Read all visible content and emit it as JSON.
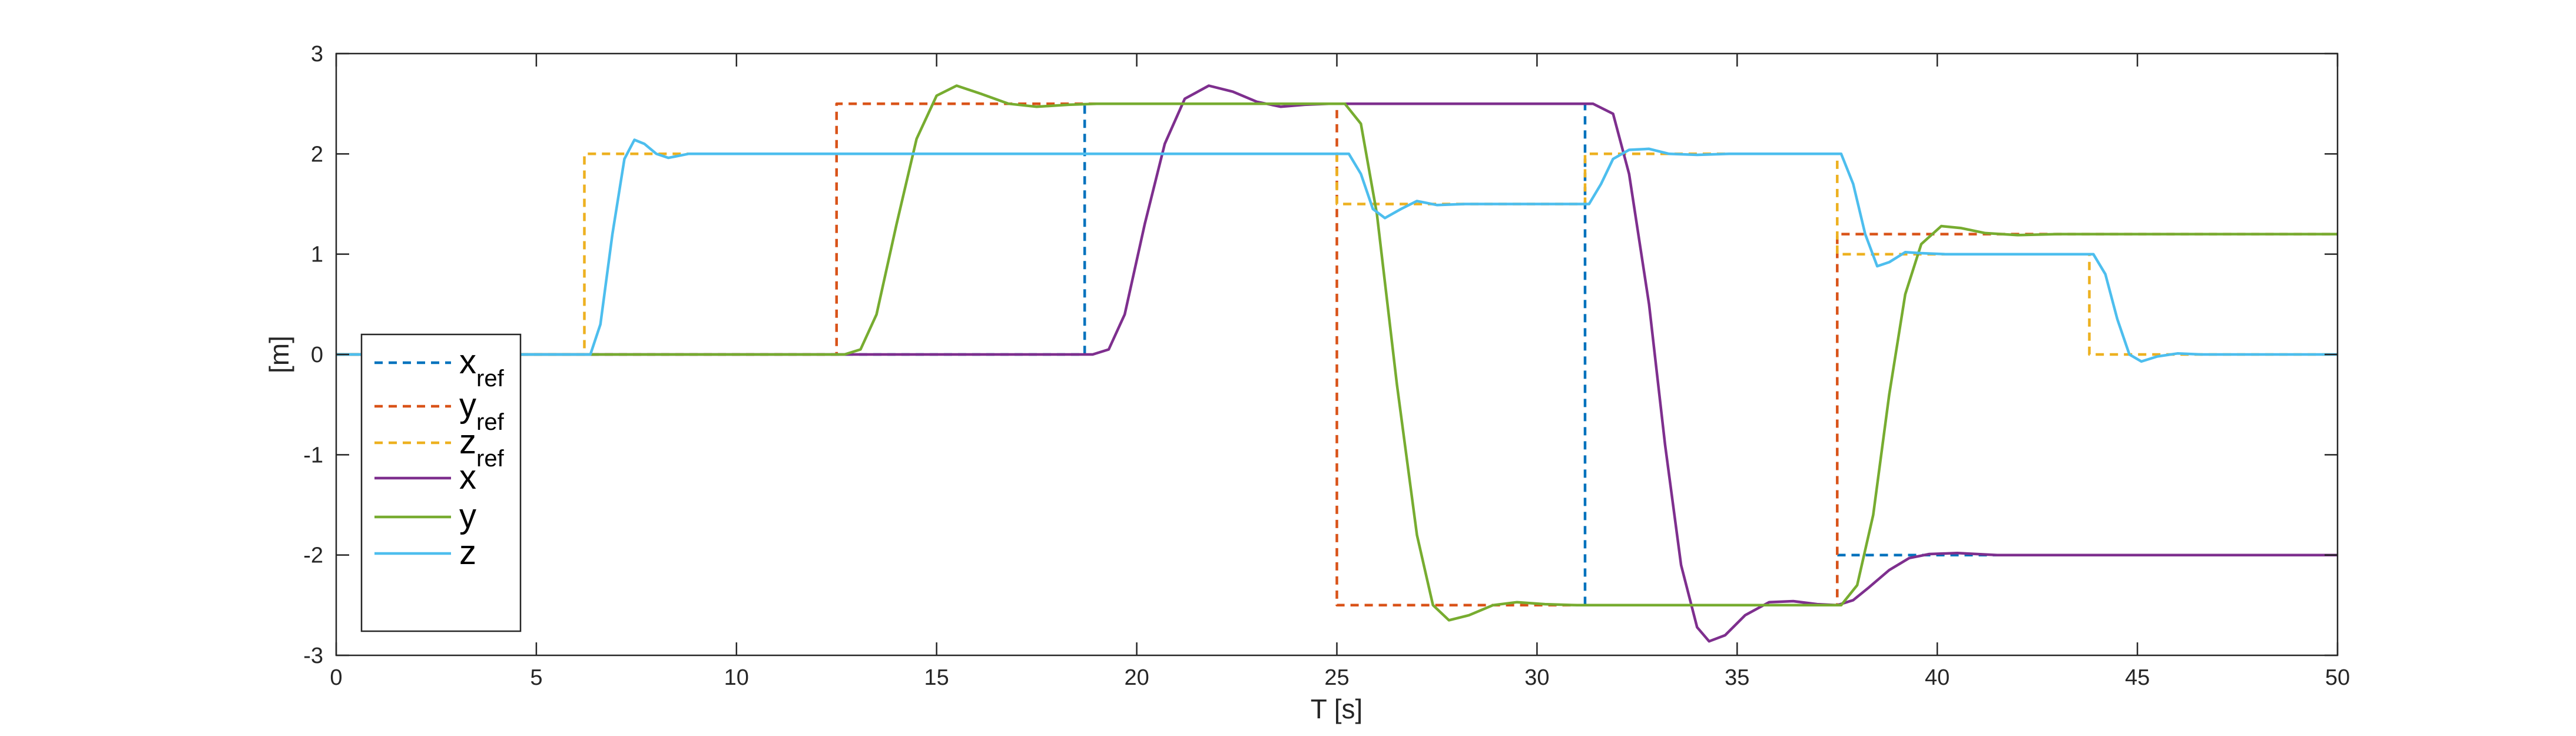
{
  "chart_data": {
    "type": "line",
    "title": "",
    "xlabel": "T [s]",
    "ylabel": "[m]",
    "xlim": [
      0,
      50
    ],
    "ylim": [
      -3,
      3
    ],
    "xticks": [
      0,
      5,
      10,
      15,
      20,
      25,
      30,
      35,
      40,
      45,
      50
    ],
    "yticks": [
      -3,
      -2,
      -1,
      0,
      1,
      2,
      3
    ],
    "legend_position": "bottom-left",
    "series": [
      {
        "name": "x_ref",
        "legend_main": "x",
        "legend_sub": "ref",
        "color": "#0072BD",
        "style": "dashed",
        "points": [
          [
            0,
            0
          ],
          [
            18.7,
            0
          ],
          [
            18.7,
            2.5
          ],
          [
            31.2,
            2.5
          ],
          [
            31.2,
            -2.5
          ],
          [
            37.5,
            -2.5
          ],
          [
            37.5,
            -2
          ],
          [
            50,
            -2
          ]
        ]
      },
      {
        "name": "y_ref",
        "legend_main": "y",
        "legend_sub": "ref",
        "color": "#D95319",
        "style": "dashed",
        "points": [
          [
            0,
            0
          ],
          [
            12.5,
            0
          ],
          [
            12.5,
            2.5
          ],
          [
            25,
            2.5
          ],
          [
            25,
            -2.5
          ],
          [
            37.5,
            -2.5
          ],
          [
            37.5,
            1.2
          ],
          [
            50,
            1.2
          ]
        ]
      },
      {
        "name": "z_ref",
        "legend_main": "z",
        "legend_sub": "ref",
        "color": "#EDB120",
        "style": "dashed",
        "points": [
          [
            0,
            0
          ],
          [
            6.2,
            0
          ],
          [
            6.2,
            2
          ],
          [
            25,
            2
          ],
          [
            25,
            1.5
          ],
          [
            31.2,
            1.5
          ],
          [
            31.2,
            2
          ],
          [
            37.5,
            2
          ],
          [
            37.5,
            1
          ],
          [
            43.8,
            1
          ],
          [
            43.8,
            0
          ],
          [
            50,
            0
          ]
        ]
      },
      {
        "name": "x",
        "legend_main": "x",
        "legend_sub": "",
        "color": "#7E2F8E",
        "style": "solid",
        "points": [
          [
            0,
            0
          ],
          [
            18.9,
            0
          ],
          [
            19.3,
            0.05
          ],
          [
            19.7,
            0.4
          ],
          [
            20.2,
            1.3
          ],
          [
            20.7,
            2.1
          ],
          [
            21.2,
            2.55
          ],
          [
            21.8,
            2.68
          ],
          [
            22.4,
            2.62
          ],
          [
            23.0,
            2.52
          ],
          [
            23.6,
            2.47
          ],
          [
            24.2,
            2.49
          ],
          [
            24.8,
            2.5
          ],
          [
            31.4,
            2.5
          ],
          [
            31.9,
            2.4
          ],
          [
            32.3,
            1.8
          ],
          [
            32.8,
            0.5
          ],
          [
            33.2,
            -0.9
          ],
          [
            33.6,
            -2.1
          ],
          [
            34.0,
            -2.72
          ],
          [
            34.3,
            -2.86
          ],
          [
            34.7,
            -2.8
          ],
          [
            35.2,
            -2.6
          ],
          [
            35.8,
            -2.47
          ],
          [
            36.4,
            -2.46
          ],
          [
            37.0,
            -2.49
          ],
          [
            37.5,
            -2.5
          ],
          [
            37.9,
            -2.45
          ],
          [
            38.3,
            -2.32
          ],
          [
            38.8,
            -2.15
          ],
          [
            39.3,
            -2.03
          ],
          [
            39.8,
            -1.99
          ],
          [
            40.5,
            -1.98
          ],
          [
            41.5,
            -2.0
          ],
          [
            50,
            -2
          ]
        ]
      },
      {
        "name": "y",
        "legend_main": "y",
        "legend_sub": "",
        "color": "#77AC30",
        "style": "solid",
        "points": [
          [
            0,
            0
          ],
          [
            12.7,
            0
          ],
          [
            13.1,
            0.05
          ],
          [
            13.5,
            0.4
          ],
          [
            14.0,
            1.3
          ],
          [
            14.5,
            2.15
          ],
          [
            15.0,
            2.58
          ],
          [
            15.5,
            2.68
          ],
          [
            16.1,
            2.6
          ],
          [
            16.8,
            2.5
          ],
          [
            17.5,
            2.47
          ],
          [
            18.3,
            2.49
          ],
          [
            19.0,
            2.5
          ],
          [
            25.2,
            2.5
          ],
          [
            25.6,
            2.3
          ],
          [
            26.0,
            1.4
          ],
          [
            26.5,
            -0.3
          ],
          [
            27.0,
            -1.8
          ],
          [
            27.4,
            -2.5
          ],
          [
            27.8,
            -2.65
          ],
          [
            28.3,
            -2.6
          ],
          [
            28.9,
            -2.5
          ],
          [
            29.5,
            -2.47
          ],
          [
            30.2,
            -2.49
          ],
          [
            31.0,
            -2.5
          ],
          [
            37.6,
            -2.5
          ],
          [
            38.0,
            -2.3
          ],
          [
            38.4,
            -1.6
          ],
          [
            38.8,
            -0.4
          ],
          [
            39.2,
            0.6
          ],
          [
            39.6,
            1.1
          ],
          [
            40.1,
            1.28
          ],
          [
            40.6,
            1.26
          ],
          [
            41.2,
            1.21
          ],
          [
            42.0,
            1.19
          ],
          [
            43.0,
            1.2
          ],
          [
            50,
            1.2
          ]
        ]
      },
      {
        "name": "z",
        "legend_main": "z",
        "legend_sub": "",
        "color": "#4DBEEE",
        "style": "solid",
        "points": [
          [
            0,
            0
          ],
          [
            6.35,
            0
          ],
          [
            6.6,
            0.3
          ],
          [
            6.9,
            1.2
          ],
          [
            7.2,
            1.95
          ],
          [
            7.45,
            2.14
          ],
          [
            7.7,
            2.1
          ],
          [
            8.0,
            2.0
          ],
          [
            8.3,
            1.96
          ],
          [
            8.8,
            2.0
          ],
          [
            9.5,
            2.0
          ],
          [
            25.3,
            2.0
          ],
          [
            25.6,
            1.8
          ],
          [
            25.9,
            1.45
          ],
          [
            26.2,
            1.36
          ],
          [
            26.6,
            1.45
          ],
          [
            27.0,
            1.53
          ],
          [
            27.5,
            1.49
          ],
          [
            28.2,
            1.5
          ],
          [
            31.3,
            1.5
          ],
          [
            31.6,
            1.7
          ],
          [
            31.9,
            1.95
          ],
          [
            32.3,
            2.04
          ],
          [
            32.8,
            2.05
          ],
          [
            33.3,
            2.0
          ],
          [
            34.0,
            1.99
          ],
          [
            34.8,
            2.0
          ],
          [
            37.6,
            2.0
          ],
          [
            37.9,
            1.7
          ],
          [
            38.2,
            1.2
          ],
          [
            38.5,
            0.88
          ],
          [
            38.8,
            0.92
          ],
          [
            39.2,
            1.02
          ],
          [
            39.6,
            1.01
          ],
          [
            40.2,
            1.0
          ],
          [
            43.9,
            1.0
          ],
          [
            44.2,
            0.8
          ],
          [
            44.5,
            0.35
          ],
          [
            44.8,
            0.0
          ],
          [
            45.1,
            -0.07
          ],
          [
            45.5,
            -0.02
          ],
          [
            46.0,
            0.01
          ],
          [
            46.6,
            0.0
          ],
          [
            50,
            0
          ]
        ]
      }
    ]
  }
}
